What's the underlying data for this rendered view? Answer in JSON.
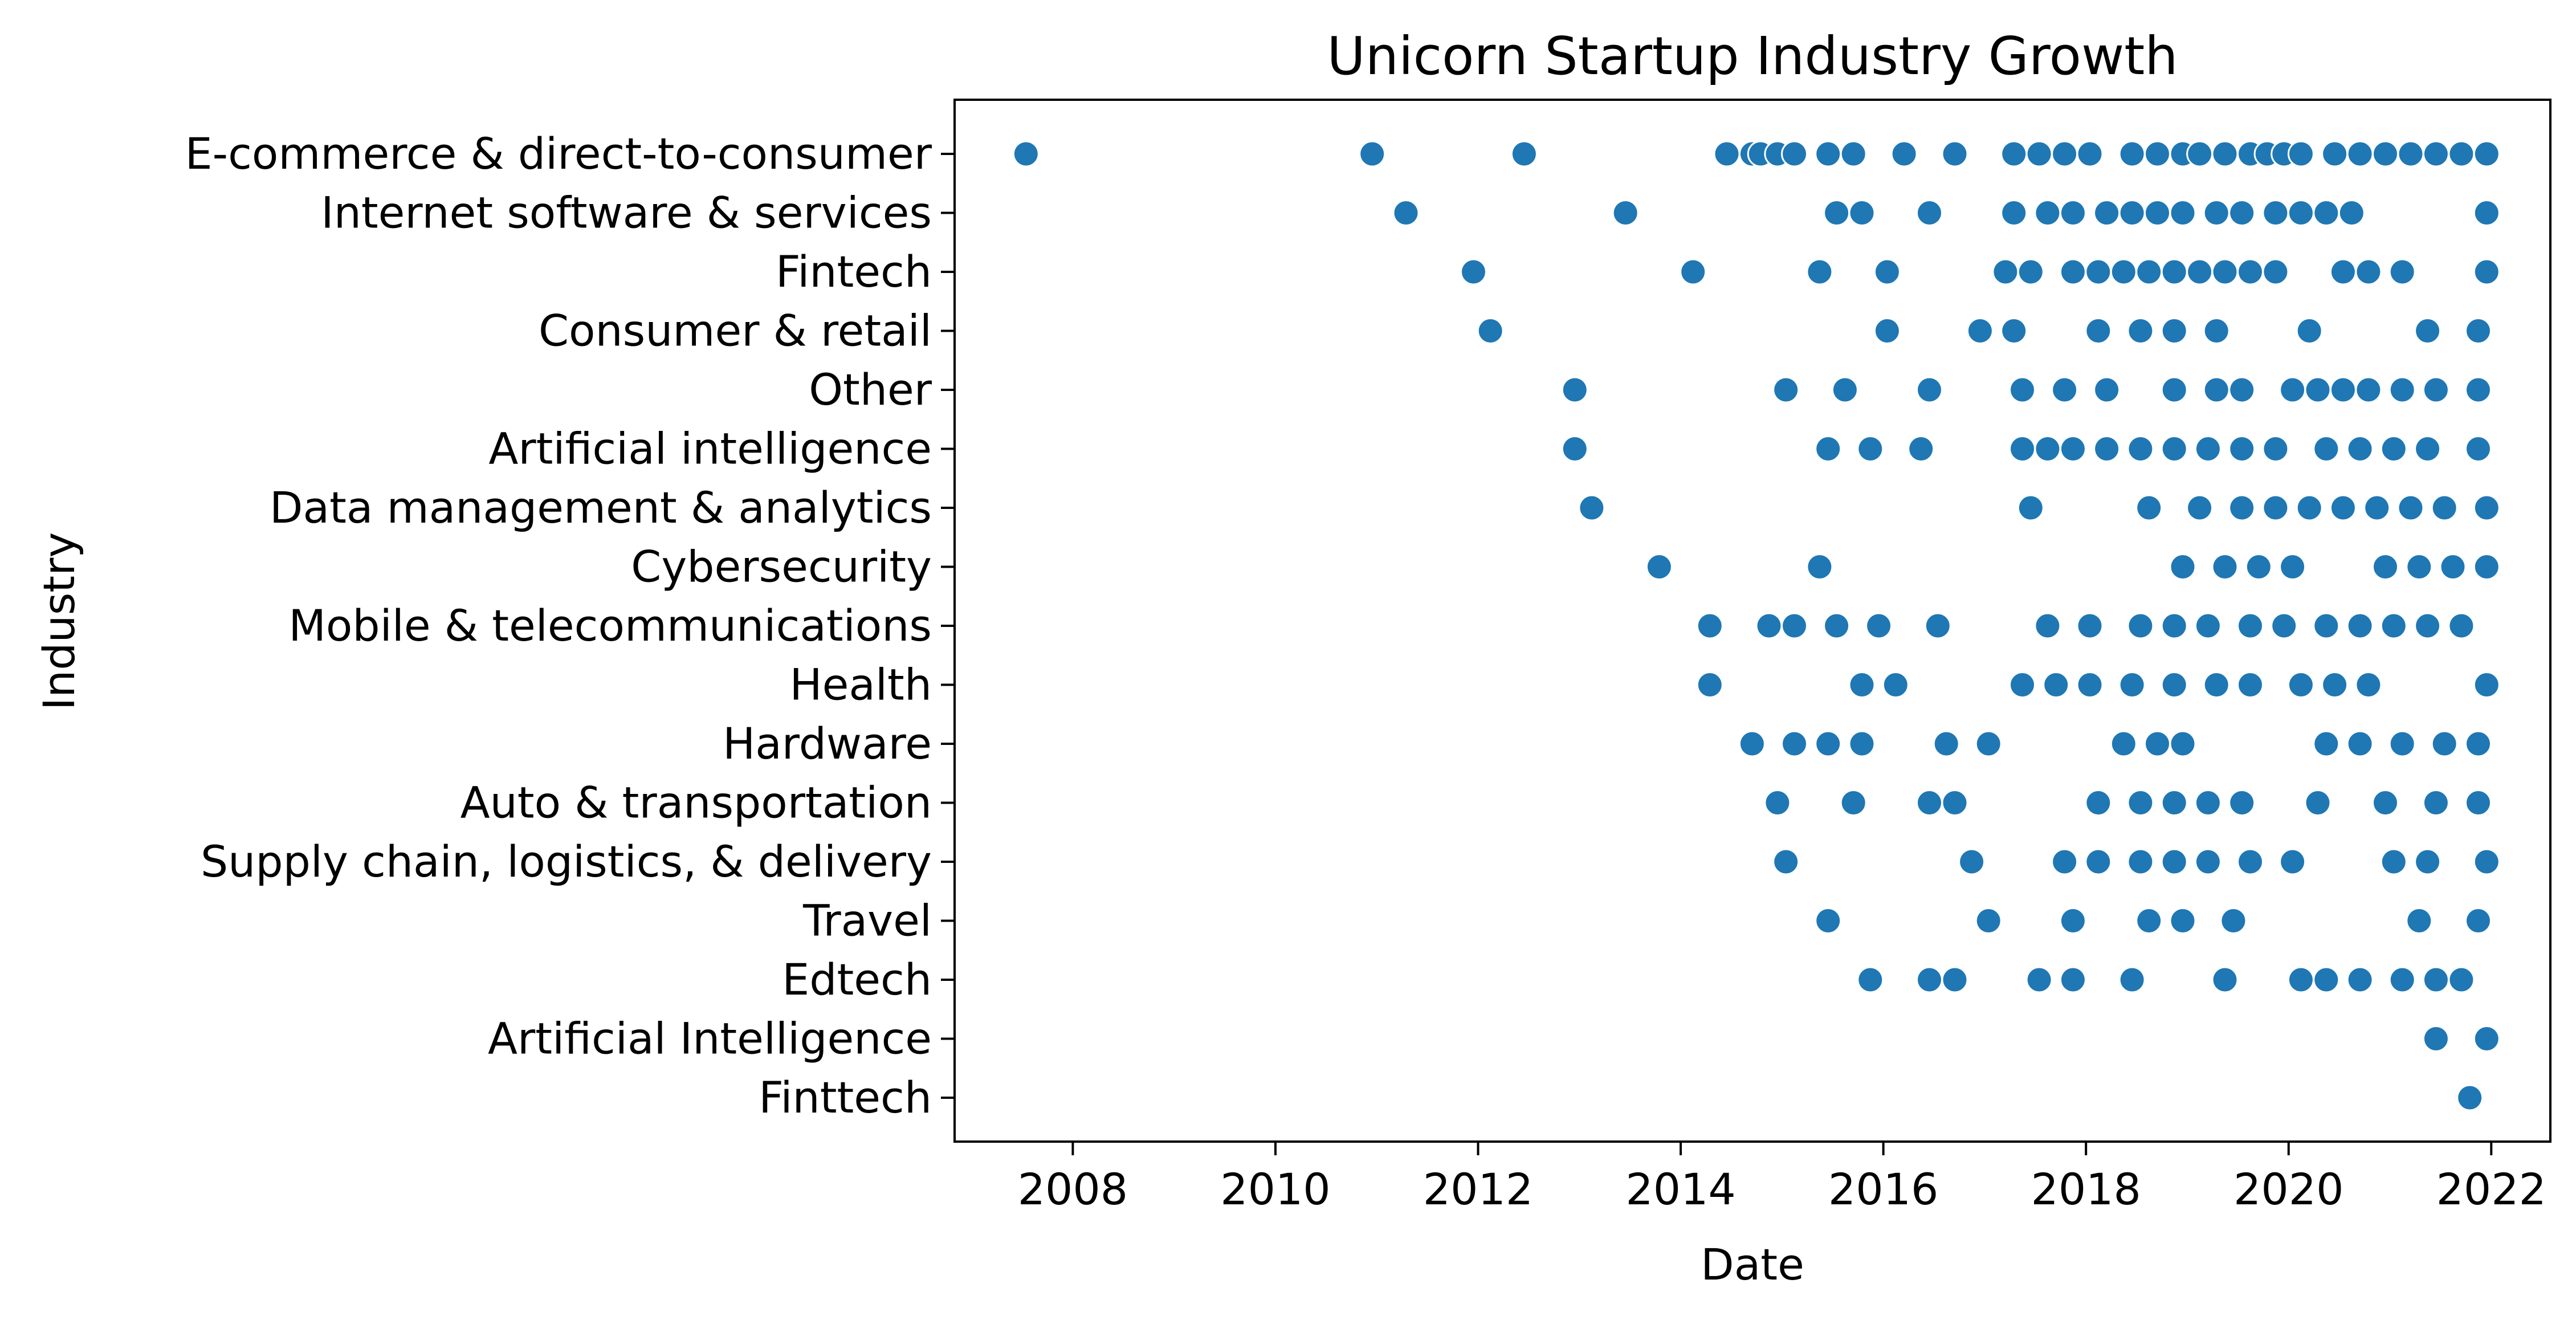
{
  "chart_data": {
    "type": "scatter",
    "title": "Unicorn Startup Industry Growth",
    "xlabel": "Date",
    "ylabel": "Industry",
    "x_ticks": [
      "2008",
      "2010",
      "2012",
      "2014",
      "2016",
      "2018",
      "2020",
      "2022"
    ],
    "xlim": [
      "2006-11-01",
      "2022-08-01"
    ],
    "grid": false,
    "marker_color": "#1f77b4",
    "categories": [
      "E-commerce & direct-to-consumer",
      "Internet software & services",
      "Fintech",
      "Consumer & retail",
      "Other",
      "Artificial intelligence",
      "Data management & analytics",
      "Cybersecurity",
      "Mobile & telecommunications",
      "Health",
      "Hardware",
      "Auto & transportation",
      "Supply chain, logistics, & delivery",
      "Travel",
      "Edtech",
      "Artificial Intelligence",
      "Finttech"
    ],
    "points": [
      [
        "2007-07",
        "E-commerce & direct-to-consumer"
      ],
      [
        "2010-12",
        "E-commerce & direct-to-consumer"
      ],
      [
        "2012-06",
        "E-commerce & direct-to-consumer"
      ],
      [
        "2014-06",
        "E-commerce & direct-to-consumer"
      ],
      [
        "2014-09",
        "E-commerce & direct-to-consumer"
      ],
      [
        "2014-10",
        "E-commerce & direct-to-consumer"
      ],
      [
        "2014-12",
        "E-commerce & direct-to-consumer"
      ],
      [
        "2015-02",
        "E-commerce & direct-to-consumer"
      ],
      [
        "2015-06",
        "E-commerce & direct-to-consumer"
      ],
      [
        "2015-09",
        "E-commerce & direct-to-consumer"
      ],
      [
        "2016-03",
        "E-commerce & direct-to-consumer"
      ],
      [
        "2016-09",
        "E-commerce & direct-to-consumer"
      ],
      [
        "2017-04",
        "E-commerce & direct-to-consumer"
      ],
      [
        "2017-07",
        "E-commerce & direct-to-consumer"
      ],
      [
        "2017-10",
        "E-commerce & direct-to-consumer"
      ],
      [
        "2018-01",
        "E-commerce & direct-to-consumer"
      ],
      [
        "2018-06",
        "E-commerce & direct-to-consumer"
      ],
      [
        "2018-09",
        "E-commerce & direct-to-consumer"
      ],
      [
        "2018-12",
        "E-commerce & direct-to-consumer"
      ],
      [
        "2019-02",
        "E-commerce & direct-to-consumer"
      ],
      [
        "2019-05",
        "E-commerce & direct-to-consumer"
      ],
      [
        "2019-08",
        "E-commerce & direct-to-consumer"
      ],
      [
        "2019-10",
        "E-commerce & direct-to-consumer"
      ],
      [
        "2019-12",
        "E-commerce & direct-to-consumer"
      ],
      [
        "2020-02",
        "E-commerce & direct-to-consumer"
      ],
      [
        "2020-06",
        "E-commerce & direct-to-consumer"
      ],
      [
        "2020-09",
        "E-commerce & direct-to-consumer"
      ],
      [
        "2020-12",
        "E-commerce & direct-to-consumer"
      ],
      [
        "2021-03",
        "E-commerce & direct-to-consumer"
      ],
      [
        "2021-06",
        "E-commerce & direct-to-consumer"
      ],
      [
        "2021-09",
        "E-commerce & direct-to-consumer"
      ],
      [
        "2021-12",
        "E-commerce & direct-to-consumer"
      ],
      [
        "2011-04",
        "Internet software & services"
      ],
      [
        "2013-06",
        "Internet software & services"
      ],
      [
        "2015-07",
        "Internet software & services"
      ],
      [
        "2015-10",
        "Internet software & services"
      ],
      [
        "2016-06",
        "Internet software & services"
      ],
      [
        "2017-04",
        "Internet software & services"
      ],
      [
        "2017-08",
        "Internet software & services"
      ],
      [
        "2017-11",
        "Internet software & services"
      ],
      [
        "2018-03",
        "Internet software & services"
      ],
      [
        "2018-06",
        "Internet software & services"
      ],
      [
        "2018-09",
        "Internet software & services"
      ],
      [
        "2018-12",
        "Internet software & services"
      ],
      [
        "2019-04",
        "Internet software & services"
      ],
      [
        "2019-07",
        "Internet software & services"
      ],
      [
        "2019-11",
        "Internet software & services"
      ],
      [
        "2020-02",
        "Internet software & services"
      ],
      [
        "2020-05",
        "Internet software & services"
      ],
      [
        "2020-08",
        "Internet software & services"
      ],
      [
        "2021-12",
        "Internet software & services"
      ],
      [
        "2011-12",
        "Fintech"
      ],
      [
        "2014-02",
        "Fintech"
      ],
      [
        "2015-05",
        "Fintech"
      ],
      [
        "2016-01",
        "Fintech"
      ],
      [
        "2017-03",
        "Fintech"
      ],
      [
        "2017-06",
        "Fintech"
      ],
      [
        "2017-11",
        "Fintech"
      ],
      [
        "2018-02",
        "Fintech"
      ],
      [
        "2018-05",
        "Fintech"
      ],
      [
        "2018-08",
        "Fintech"
      ],
      [
        "2018-11",
        "Fintech"
      ],
      [
        "2019-02",
        "Fintech"
      ],
      [
        "2019-05",
        "Fintech"
      ],
      [
        "2019-08",
        "Fintech"
      ],
      [
        "2019-11",
        "Fintech"
      ],
      [
        "2020-07",
        "Fintech"
      ],
      [
        "2020-10",
        "Fintech"
      ],
      [
        "2021-02",
        "Fintech"
      ],
      [
        "2021-12",
        "Fintech"
      ],
      [
        "2012-02",
        "Consumer & retail"
      ],
      [
        "2016-01",
        "Consumer & retail"
      ],
      [
        "2016-12",
        "Consumer & retail"
      ],
      [
        "2017-04",
        "Consumer & retail"
      ],
      [
        "2018-02",
        "Consumer & retail"
      ],
      [
        "2018-07",
        "Consumer & retail"
      ],
      [
        "2018-11",
        "Consumer & retail"
      ],
      [
        "2019-04",
        "Consumer & retail"
      ],
      [
        "2020-03",
        "Consumer & retail"
      ],
      [
        "2021-05",
        "Consumer & retail"
      ],
      [
        "2021-11",
        "Consumer & retail"
      ],
      [
        "2012-12",
        "Other"
      ],
      [
        "2015-01",
        "Other"
      ],
      [
        "2015-08",
        "Other"
      ],
      [
        "2016-06",
        "Other"
      ],
      [
        "2017-05",
        "Other"
      ],
      [
        "2017-10",
        "Other"
      ],
      [
        "2018-03",
        "Other"
      ],
      [
        "2018-11",
        "Other"
      ],
      [
        "2019-04",
        "Other"
      ],
      [
        "2019-07",
        "Other"
      ],
      [
        "2020-01",
        "Other"
      ],
      [
        "2020-04",
        "Other"
      ],
      [
        "2020-07",
        "Other"
      ],
      [
        "2020-10",
        "Other"
      ],
      [
        "2021-02",
        "Other"
      ],
      [
        "2021-06",
        "Other"
      ],
      [
        "2021-11",
        "Other"
      ],
      [
        "2012-12",
        "Artificial intelligence"
      ],
      [
        "2015-06",
        "Artificial intelligence"
      ],
      [
        "2015-11",
        "Artificial intelligence"
      ],
      [
        "2016-05",
        "Artificial intelligence"
      ],
      [
        "2017-05",
        "Artificial intelligence"
      ],
      [
        "2017-08",
        "Artificial intelligence"
      ],
      [
        "2017-11",
        "Artificial intelligence"
      ],
      [
        "2018-03",
        "Artificial intelligence"
      ],
      [
        "2018-07",
        "Artificial intelligence"
      ],
      [
        "2018-11",
        "Artificial intelligence"
      ],
      [
        "2019-03",
        "Artificial intelligence"
      ],
      [
        "2019-07",
        "Artificial intelligence"
      ],
      [
        "2019-11",
        "Artificial intelligence"
      ],
      [
        "2020-05",
        "Artificial intelligence"
      ],
      [
        "2020-09",
        "Artificial intelligence"
      ],
      [
        "2021-01",
        "Artificial intelligence"
      ],
      [
        "2021-05",
        "Artificial intelligence"
      ],
      [
        "2021-11",
        "Artificial intelligence"
      ],
      [
        "2013-02",
        "Data management & analytics"
      ],
      [
        "2017-06",
        "Data management & analytics"
      ],
      [
        "2018-08",
        "Data management & analytics"
      ],
      [
        "2019-02",
        "Data management & analytics"
      ],
      [
        "2019-07",
        "Data management & analytics"
      ],
      [
        "2019-11",
        "Data management & analytics"
      ],
      [
        "2020-03",
        "Data management & analytics"
      ],
      [
        "2020-07",
        "Data management & analytics"
      ],
      [
        "2020-11",
        "Data management & analytics"
      ],
      [
        "2021-03",
        "Data management & analytics"
      ],
      [
        "2021-07",
        "Data management & analytics"
      ],
      [
        "2021-12",
        "Data management & analytics"
      ],
      [
        "2013-10",
        "Cybersecurity"
      ],
      [
        "2015-05",
        "Cybersecurity"
      ],
      [
        "2018-12",
        "Cybersecurity"
      ],
      [
        "2019-05",
        "Cybersecurity"
      ],
      [
        "2019-09",
        "Cybersecurity"
      ],
      [
        "2020-01",
        "Cybersecurity"
      ],
      [
        "2020-12",
        "Cybersecurity"
      ],
      [
        "2021-04",
        "Cybersecurity"
      ],
      [
        "2021-08",
        "Cybersecurity"
      ],
      [
        "2021-12",
        "Cybersecurity"
      ],
      [
        "2014-04",
        "Mobile & telecommunications"
      ],
      [
        "2014-11",
        "Mobile & telecommunications"
      ],
      [
        "2015-02",
        "Mobile & telecommunications"
      ],
      [
        "2015-07",
        "Mobile & telecommunications"
      ],
      [
        "2015-12",
        "Mobile & telecommunications"
      ],
      [
        "2016-07",
        "Mobile & telecommunications"
      ],
      [
        "2017-08",
        "Mobile & telecommunications"
      ],
      [
        "2018-01",
        "Mobile & telecommunications"
      ],
      [
        "2018-07",
        "Mobile & telecommunications"
      ],
      [
        "2018-11",
        "Mobile & telecommunications"
      ],
      [
        "2019-03",
        "Mobile & telecommunications"
      ],
      [
        "2019-08",
        "Mobile & telecommunications"
      ],
      [
        "2019-12",
        "Mobile & telecommunications"
      ],
      [
        "2020-05",
        "Mobile & telecommunications"
      ],
      [
        "2020-09",
        "Mobile & telecommunications"
      ],
      [
        "2021-01",
        "Mobile & telecommunications"
      ],
      [
        "2021-05",
        "Mobile & telecommunications"
      ],
      [
        "2021-09",
        "Mobile & telecommunications"
      ],
      [
        "2014-04",
        "Health"
      ],
      [
        "2015-10",
        "Health"
      ],
      [
        "2016-02",
        "Health"
      ],
      [
        "2017-05",
        "Health"
      ],
      [
        "2017-09",
        "Health"
      ],
      [
        "2018-01",
        "Health"
      ],
      [
        "2018-06",
        "Health"
      ],
      [
        "2018-11",
        "Health"
      ],
      [
        "2019-04",
        "Health"
      ],
      [
        "2019-08",
        "Health"
      ],
      [
        "2020-02",
        "Health"
      ],
      [
        "2020-06",
        "Health"
      ],
      [
        "2020-10",
        "Health"
      ],
      [
        "2021-12",
        "Health"
      ],
      [
        "2014-09",
        "Hardware"
      ],
      [
        "2015-02",
        "Hardware"
      ],
      [
        "2015-06",
        "Hardware"
      ],
      [
        "2015-10",
        "Hardware"
      ],
      [
        "2016-08",
        "Hardware"
      ],
      [
        "2017-01",
        "Hardware"
      ],
      [
        "2018-05",
        "Hardware"
      ],
      [
        "2018-09",
        "Hardware"
      ],
      [
        "2018-12",
        "Hardware"
      ],
      [
        "2020-05",
        "Hardware"
      ],
      [
        "2020-09",
        "Hardware"
      ],
      [
        "2021-02",
        "Hardware"
      ],
      [
        "2021-07",
        "Hardware"
      ],
      [
        "2021-11",
        "Hardware"
      ],
      [
        "2014-12",
        "Auto & transportation"
      ],
      [
        "2015-09",
        "Auto & transportation"
      ],
      [
        "2016-06",
        "Auto & transportation"
      ],
      [
        "2016-09",
        "Auto & transportation"
      ],
      [
        "2018-02",
        "Auto & transportation"
      ],
      [
        "2018-07",
        "Auto & transportation"
      ],
      [
        "2018-11",
        "Auto & transportation"
      ],
      [
        "2019-03",
        "Auto & transportation"
      ],
      [
        "2019-07",
        "Auto & transportation"
      ],
      [
        "2020-04",
        "Auto & transportation"
      ],
      [
        "2020-12",
        "Auto & transportation"
      ],
      [
        "2021-06",
        "Auto & transportation"
      ],
      [
        "2021-11",
        "Auto & transportation"
      ],
      [
        "2015-01",
        "Supply chain, logistics, & delivery"
      ],
      [
        "2016-11",
        "Supply chain, logistics, & delivery"
      ],
      [
        "2017-10",
        "Supply chain, logistics, & delivery"
      ],
      [
        "2018-02",
        "Supply chain, logistics, & delivery"
      ],
      [
        "2018-07",
        "Supply chain, logistics, & delivery"
      ],
      [
        "2018-11",
        "Supply chain, logistics, & delivery"
      ],
      [
        "2019-03",
        "Supply chain, logistics, & delivery"
      ],
      [
        "2019-08",
        "Supply chain, logistics, & delivery"
      ],
      [
        "2020-01",
        "Supply chain, logistics, & delivery"
      ],
      [
        "2021-01",
        "Supply chain, logistics, & delivery"
      ],
      [
        "2021-05",
        "Supply chain, logistics, & delivery"
      ],
      [
        "2021-12",
        "Supply chain, logistics, & delivery"
      ],
      [
        "2015-06",
        "Travel"
      ],
      [
        "2017-01",
        "Travel"
      ],
      [
        "2017-11",
        "Travel"
      ],
      [
        "2018-08",
        "Travel"
      ],
      [
        "2018-12",
        "Travel"
      ],
      [
        "2019-06",
        "Travel"
      ],
      [
        "2021-04",
        "Travel"
      ],
      [
        "2021-11",
        "Travel"
      ],
      [
        "2015-11",
        "Edtech"
      ],
      [
        "2016-06",
        "Edtech"
      ],
      [
        "2016-09",
        "Edtech"
      ],
      [
        "2017-07",
        "Edtech"
      ],
      [
        "2017-11",
        "Edtech"
      ],
      [
        "2018-06",
        "Edtech"
      ],
      [
        "2019-05",
        "Edtech"
      ],
      [
        "2020-02",
        "Edtech"
      ],
      [
        "2020-05",
        "Edtech"
      ],
      [
        "2020-09",
        "Edtech"
      ],
      [
        "2021-02",
        "Edtech"
      ],
      [
        "2021-06",
        "Edtech"
      ],
      [
        "2021-09",
        "Edtech"
      ],
      [
        "2021-06",
        "Artificial Intelligence"
      ],
      [
        "2021-12",
        "Artificial Intelligence"
      ],
      [
        "2021-10",
        "Finttech"
      ]
    ]
  }
}
